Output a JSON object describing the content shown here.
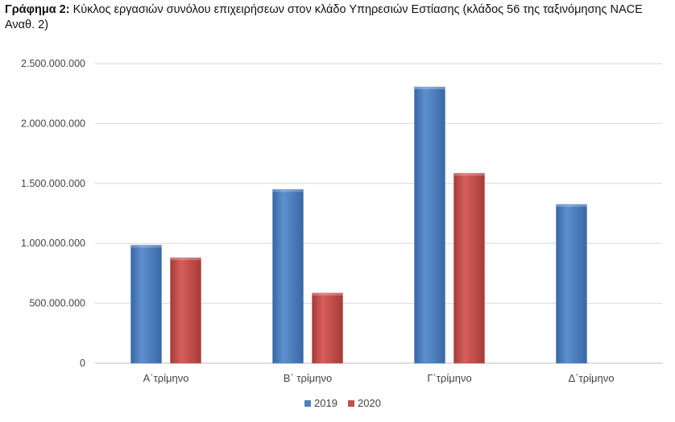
{
  "caption": {
    "label": "Γράφημα 2:",
    "text": " Κύκλος εργασιών συνόλου επιχειρήσεων στον κλάδο Υπηρεσιών Εστίασης (κλάδος 56 της ταξινόμησης NACE Αναθ. 2)"
  },
  "chart_data": {
    "type": "bar",
    "title": "Κύκλος εργασιών συνόλου επιχειρήσεων στον κλάδο Υπηρεσιών Εστίασης (κλάδος 56 της ταξινόμησης NACE Αναθ. 2)",
    "categories": [
      "Α΄τρίμηνο",
      "Β΄ τρίμηνο",
      "Γ΄τρίμηνο",
      "Δ΄τρίμηνο"
    ],
    "series": [
      {
        "name": "2019",
        "color": "#4f81bd",
        "values": [
          985000000,
          1450000000,
          2305000000,
          1325000000
        ]
      },
      {
        "name": "2020",
        "color": "#c0504d",
        "values": [
          880000000,
          585000000,
          1585000000,
          null
        ]
      }
    ],
    "ylim": [
      0,
      2500000000
    ],
    "yticks": [
      0,
      500000000,
      1000000000,
      1500000000,
      2000000000,
      2500000000
    ],
    "ytick_labels": [
      "0",
      "500.000.000",
      "1.000.000.000",
      "1.500.000.000",
      "2.000.000.000",
      "2.500.000.000"
    ],
    "grid": true,
    "legend": "bottom",
    "xlabel": "",
    "ylabel": ""
  }
}
